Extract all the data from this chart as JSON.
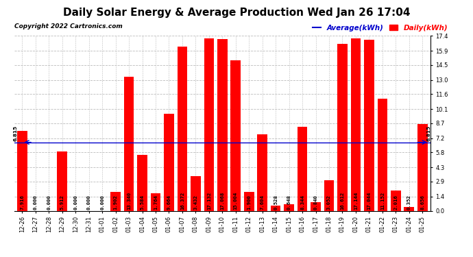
{
  "title": "Daily Solar Energy & Average Production Wed Jan 26 17:04",
  "copyright": "Copyright 2022 Cartronics.com",
  "average_label": "Average(kWh)",
  "daily_label": "Daily(kWh)",
  "average_value": 6.815,
  "categories": [
    "12-26",
    "12-27",
    "12-28",
    "12-29",
    "12-30",
    "12-31",
    "01-01",
    "01-02",
    "01-03",
    "01-04",
    "01-05",
    "01-06",
    "01-07",
    "01-08",
    "01-09",
    "01-10",
    "01-11",
    "01-12",
    "01-13",
    "01-14",
    "01-15",
    "01-16",
    "01-17",
    "01-18",
    "01-19",
    "01-20",
    "01-21",
    "01-22",
    "01-23",
    "01-24",
    "01-25"
  ],
  "values": [
    7.916,
    0.0,
    0.0,
    5.912,
    0.0,
    0.0,
    0.0,
    1.902,
    13.34,
    5.584,
    1.764,
    9.664,
    16.372,
    3.432,
    17.132,
    17.068,
    15.004,
    1.9,
    7.604,
    0.528,
    0.648,
    8.344,
    0.84,
    3.052,
    16.612,
    17.144,
    17.044,
    11.152,
    2.016,
    0.352,
    8.656
  ],
  "bar_color": "#ff0000",
  "avg_line_color": "#0000cc",
  "background_color": "#ffffff",
  "grid_color": "#bbbbbb",
  "ylim": [
    0,
    17.4
  ],
  "yticks": [
    0.0,
    1.4,
    2.9,
    4.3,
    5.8,
    7.2,
    8.7,
    10.1,
    11.6,
    13.0,
    14.5,
    15.9,
    17.4
  ],
  "title_fontsize": 11,
  "tick_fontsize": 6,
  "label_fontsize": 5.2,
  "copyright_fontsize": 6.5,
  "legend_fontsize": 7.5
}
